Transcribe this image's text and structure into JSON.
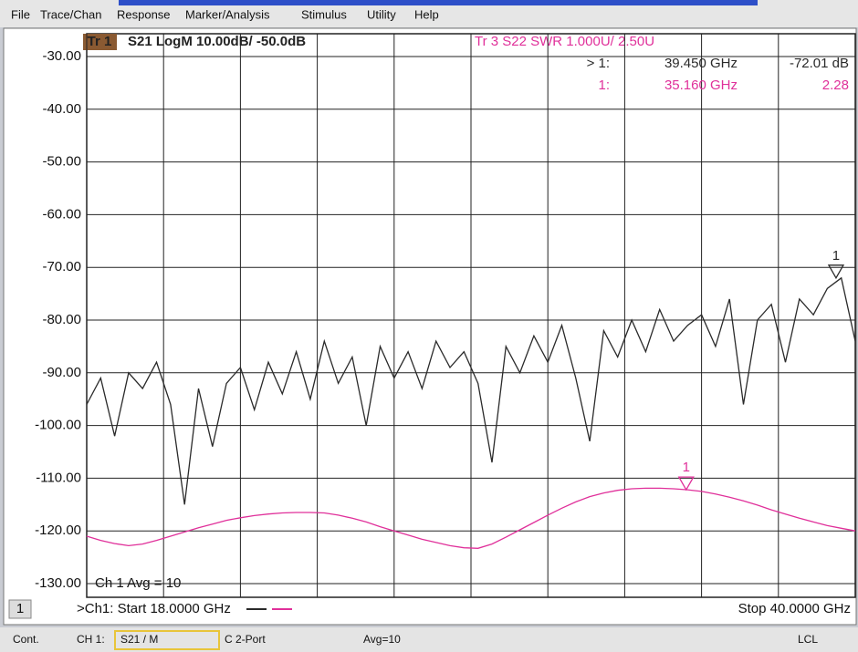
{
  "menu": [
    "File",
    "Trace/Chan",
    "Response",
    "Marker/Analysis",
    "Stimulus",
    "Utility",
    "Help"
  ],
  "chart_data": {
    "type": "line",
    "trace1_tag": "Tr 1",
    "trace1_title": "S21 LogM 10.00dB/ -50.0dB",
    "trace3_title": "Tr 3  S22 SWR 1.000U/ 2.50U",
    "avg_label": "Ch 1 Avg =  10",
    "channel_tag": "1",
    "start_label": ">Ch1: Start  18.0000 GHz",
    "stop_label": "Stop  40.0000 GHz",
    "x": [
      18,
      18.4,
      18.8,
      19.2,
      19.6,
      20,
      20.4,
      20.8,
      21.2,
      21.6,
      22,
      22.4,
      22.8,
      23.2,
      23.6,
      24,
      24.4,
      24.8,
      25.2,
      25.6,
      26,
      26.4,
      26.8,
      27.2,
      27.6,
      28,
      28.4,
      28.8,
      29.2,
      29.6,
      30,
      30.4,
      30.8,
      31.2,
      31.6,
      32,
      32.4,
      32.8,
      33.2,
      33.6,
      34,
      34.4,
      34.8,
      35.2,
      35.6,
      36,
      36.4,
      36.8,
      37.2,
      37.6,
      38,
      38.4,
      38.8,
      39.2,
      39.6,
      40
    ],
    "xlim": [
      18,
      40
    ],
    "xticks": [
      18,
      20.2,
      22.4,
      24.6,
      26.8,
      29,
      31.2,
      33.4,
      35.6,
      37.8,
      40
    ],
    "ylim": [
      -130,
      -30
    ],
    "yticks": [
      {
        "value": -30,
        "label": "-30.00"
      },
      {
        "value": -40,
        "label": "-40.00"
      },
      {
        "value": -50,
        "label": "-50.00"
      },
      {
        "value": -60,
        "label": "-60.00"
      },
      {
        "value": -70,
        "label": "-70.00"
      },
      {
        "value": -80,
        "label": "-80.00"
      },
      {
        "value": -90,
        "label": "-90.00"
      },
      {
        "value": -100,
        "label": "-100.00"
      },
      {
        "value": -110,
        "label": "-110.00"
      },
      {
        "value": -120,
        "label": "-120.00"
      },
      {
        "value": -130,
        "label": "-130.00"
      }
    ],
    "y2lim": [
      0.5,
      10.5
    ],
    "grid": true,
    "series": [
      {
        "name": "S21",
        "color": "#2a2a2a",
        "values": [
          -96,
          -91,
          -102,
          -90,
          -93,
          -88,
          -96,
          -115,
          -93,
          -104,
          -92,
          -89,
          -97,
          -88,
          -94,
          -86,
          -95,
          -84,
          -92,
          -87,
          -100,
          -85,
          -91,
          -86,
          -93,
          -84,
          -89,
          -86,
          -92,
          -107,
          -85,
          -90,
          -83,
          -88,
          -81,
          -91,
          -103,
          -82,
          -87,
          -80,
          -86,
          -78,
          -84,
          -81,
          -79,
          -85,
          -76,
          -96,
          -80,
          -77,
          -88,
          -76,
          -79,
          -74,
          -72,
          -84
        ]
      },
      {
        "name": "S22",
        "color": "#e0309a",
        "axis": "y2",
        "values": [
          1.4,
          1.32,
          1.26,
          1.22,
          1.25,
          1.32,
          1.4,
          1.48,
          1.56,
          1.63,
          1.7,
          1.75,
          1.79,
          1.82,
          1.84,
          1.85,
          1.85,
          1.84,
          1.8,
          1.74,
          1.67,
          1.58,
          1.5,
          1.42,
          1.34,
          1.28,
          1.22,
          1.18,
          1.17,
          1.25,
          1.38,
          1.52,
          1.66,
          1.8,
          1.93,
          2.05,
          2.15,
          2.22,
          2.27,
          2.3,
          2.31,
          2.31,
          2.3,
          2.28,
          2.25,
          2.2,
          2.14,
          2.07,
          1.99,
          1.9,
          1.82,
          1.74,
          1.67,
          1.6,
          1.55,
          1.5
        ]
      }
    ],
    "markers": [
      {
        "name": "> 1:",
        "flag": "1",
        "color": "#2a2a2a",
        "x": {
          "value": 39.45,
          "label": "39.450 GHz"
        },
        "y": {
          "value": -72.01,
          "label": "-72.01 dB"
        }
      },
      {
        "name": "1:",
        "flag": "1",
        "color": "#e0309a",
        "axis": "y2",
        "x": {
          "value": 35.16,
          "label": "35.160 GHz"
        },
        "y": {
          "value": 2.28,
          "label": "2.28"
        }
      }
    ]
  },
  "status_bar": [
    "Cont.",
    "CH 1:",
    "S21 / M",
    "C 2-Port",
    "Avg=10",
    "LCL"
  ]
}
